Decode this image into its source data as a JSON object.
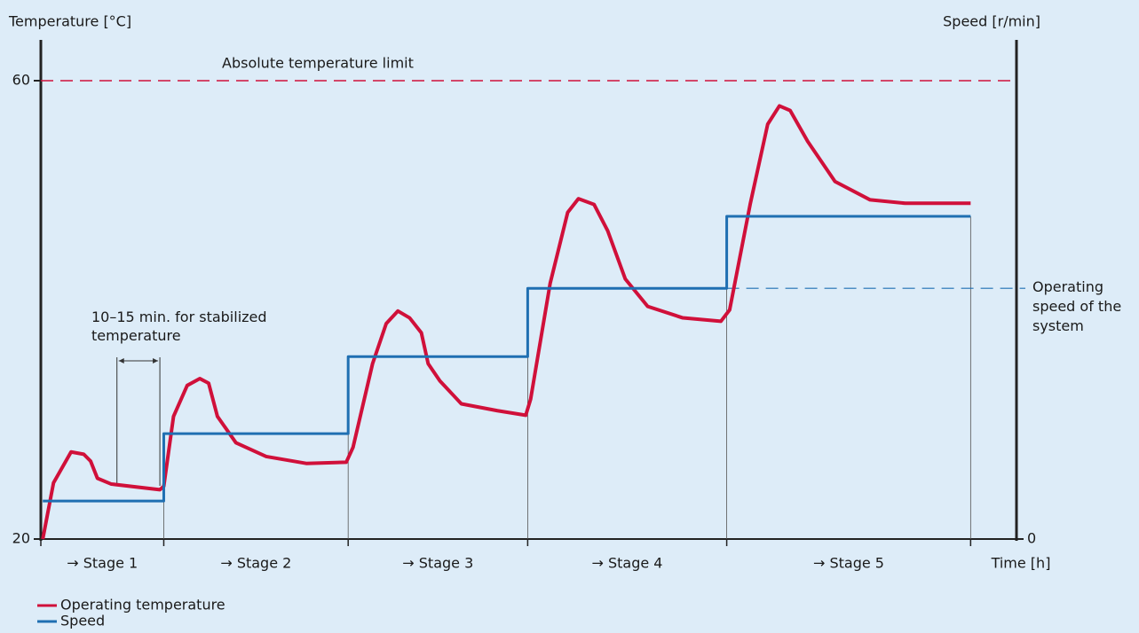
{
  "chart_data": {
    "type": "line",
    "y_label": "Temperature [°C]",
    "y2_label": "Speed [r/min]",
    "x_label": "Time [h]",
    "xlim": [
      0,
      100
    ],
    "ylim": [
      20,
      60
    ],
    "yticks": [
      20,
      60
    ],
    "y2lim": [
      0,
      100
    ],
    "y2ticks": [
      0
    ],
    "series": [
      {
        "name": "Operating temperature",
        "color": "#d0103a",
        "x": [
          0.2,
          1.3,
          3.1,
          4.4,
          5.1,
          5.8,
          7.2,
          12.2,
          12.6,
          13.6,
          15.0,
          16.3,
          17.2,
          18.1,
          20.0,
          23.1,
          27.2,
          31.3,
          32.0,
          34.0,
          35.4,
          36.6,
          37.8,
          39.0,
          39.7,
          40.9,
          43.1,
          46.8,
          49.7,
          50.2,
          52.2,
          54.0,
          55.1,
          56.7,
          58.1,
          59.9,
          62.2,
          65.8,
          69.7,
          70.6,
          72.7,
          74.5,
          75.7,
          76.8,
          78.6,
          81.4,
          85.0,
          88.6,
          95.3
        ],
        "values": [
          20,
          24.9,
          27.6,
          27.4,
          26.8,
          25.3,
          24.8,
          24.3,
          24.6,
          30.7,
          33.4,
          34.0,
          33.6,
          30.7,
          28.4,
          27.2,
          26.6,
          26.7,
          28.0,
          35.3,
          38.8,
          39.9,
          39.3,
          38.0,
          35.3,
          33.8,
          31.8,
          31.2,
          30.8,
          32.2,
          42.3,
          48.5,
          49.7,
          49.2,
          46.9,
          42.7,
          40.3,
          39.3,
          39.0,
          40.0,
          49.2,
          56.2,
          57.8,
          57.4,
          54.7,
          51.2,
          49.6,
          49.3,
          49.3
        ]
      },
      {
        "name": "Speed",
        "color": "#1f6fb2",
        "axis": "y2",
        "x": [
          0.2,
          12.6,
          12.6,
          31.5,
          31.5,
          49.9,
          49.9,
          70.3,
          70.3,
          95.3
        ],
        "values": [
          8.3,
          8.3,
          23.0,
          23.0,
          39.8,
          39.8,
          54.7,
          54.7,
          70.4,
          70.4
        ]
      }
    ],
    "reference_lines": [
      {
        "label": "Absolute temperature limit",
        "value": 60,
        "color": "#d0103a"
      },
      {
        "label": "Operating speed of the system",
        "value": 54.7,
        "axis": "y2",
        "x_start": 70.3,
        "color": "#1f6fb2"
      }
    ],
    "stages": {
      "labels": [
        "→ Stage 1",
        "→ Stage 2",
        "→ Stage 3",
        "→ Stage 4",
        "→ Stage 5"
      ],
      "bounds": [
        0,
        12.6,
        31.5,
        49.9,
        70.3,
        95.3
      ]
    },
    "annotation": "10–15 min. for stabilized temperature",
    "annotation_span": [
      7.8,
      12.2
    ]
  }
}
